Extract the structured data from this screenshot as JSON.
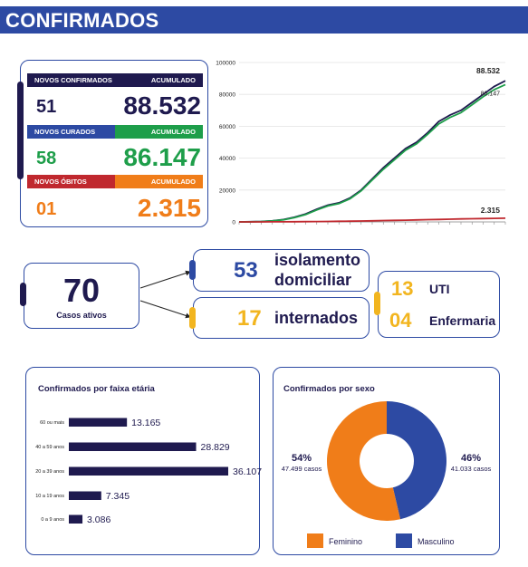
{
  "header": {
    "title": "CONFIRMADOS"
  },
  "summary": {
    "confirmed": {
      "new_label": "NOVOS CONFIRMADOS",
      "acc_label": "ACUMULADO",
      "new": "51",
      "acc": "88.532"
    },
    "cured": {
      "new_label": "NOVOS CURADOS",
      "acc_label": "ACUMULADO",
      "new": "58",
      "acc": "86.147"
    },
    "deaths": {
      "new_label": "NOVOS ÓBITOS",
      "acc_label": "ACUMULADO",
      "new": "01",
      "acc": "2.315"
    }
  },
  "active": {
    "total": "70",
    "total_label": "Casos ativos",
    "isolation": {
      "value": "53",
      "label_line1": "isolamento",
      "label_line2": "domiciliar"
    },
    "hospitalized": {
      "value": "17",
      "label": "internados"
    },
    "icu": {
      "value": "13",
      "label": "UTI"
    },
    "ward": {
      "value": "04",
      "label": "Enfermaria"
    }
  },
  "colors": {
    "navy": "#1f1a4f",
    "blue": "#2d4aa3",
    "green": "#1e9e4a",
    "red": "#c0282e",
    "orange": "#f07d19",
    "yellow": "#f2b51f"
  },
  "chart_data": [
    {
      "type": "line",
      "title": "",
      "ylim": [
        0,
        100000
      ],
      "yticks": [
        "100000",
        "80000",
        "60000",
        "40000",
        "20000",
        "0"
      ],
      "series": [
        {
          "color": "#1f1a4f",
          "end_label": "88.532",
          "values": [
            0,
            100,
            300,
            700,
            1500,
            3000,
            5000,
            8000,
            10500,
            12000,
            15000,
            20000,
            27000,
            34000,
            40000,
            46000,
            50000,
            56000,
            63000,
            67000,
            70000,
            75000,
            80000,
            85000,
            88532
          ]
        },
        {
          "color": "#1e9e4a",
          "end_label": "86.147",
          "values": [
            0,
            80,
            250,
            600,
            1300,
            2700,
            4600,
            7500,
            10000,
            11500,
            14500,
            19500,
            26300,
            33000,
            39000,
            45000,
            49000,
            55000,
            61500,
            65500,
            68500,
            73500,
            78500,
            83000,
            86147
          ]
        },
        {
          "color": "#c0282e",
          "end_label": "2.315",
          "values": [
            0,
            5,
            15,
            30,
            60,
            100,
            150,
            220,
            300,
            380,
            470,
            580,
            700,
            830,
            960,
            1100,
            1250,
            1400,
            1550,
            1700,
            1850,
            2000,
            2120,
            2230,
            2315
          ]
        }
      ]
    },
    {
      "type": "bar",
      "title": "Confirmados por faixa etária",
      "categories": [
        "60 ou mais",
        "40 a 59 anos",
        "20 a 39 anos",
        "10 a 19 anos",
        "0 a 9 anos"
      ],
      "values": [
        13165,
        28829,
        36107,
        7345,
        3086
      ],
      "value_labels": [
        "13.165",
        "28.829",
        "36.107",
        "7.345",
        "3.086"
      ]
    },
    {
      "type": "pie",
      "title": "Confirmados por sexo",
      "slices": [
        {
          "name": "Feminino",
          "percent_label": "54%",
          "count_label": "47.499 casos",
          "value": 47499,
          "color": "#f07d19"
        },
        {
          "name": "Masculino",
          "percent_label": "46%",
          "count_label": "41.033 casos",
          "value": 41033,
          "color": "#2d4aa3"
        }
      ]
    }
  ]
}
